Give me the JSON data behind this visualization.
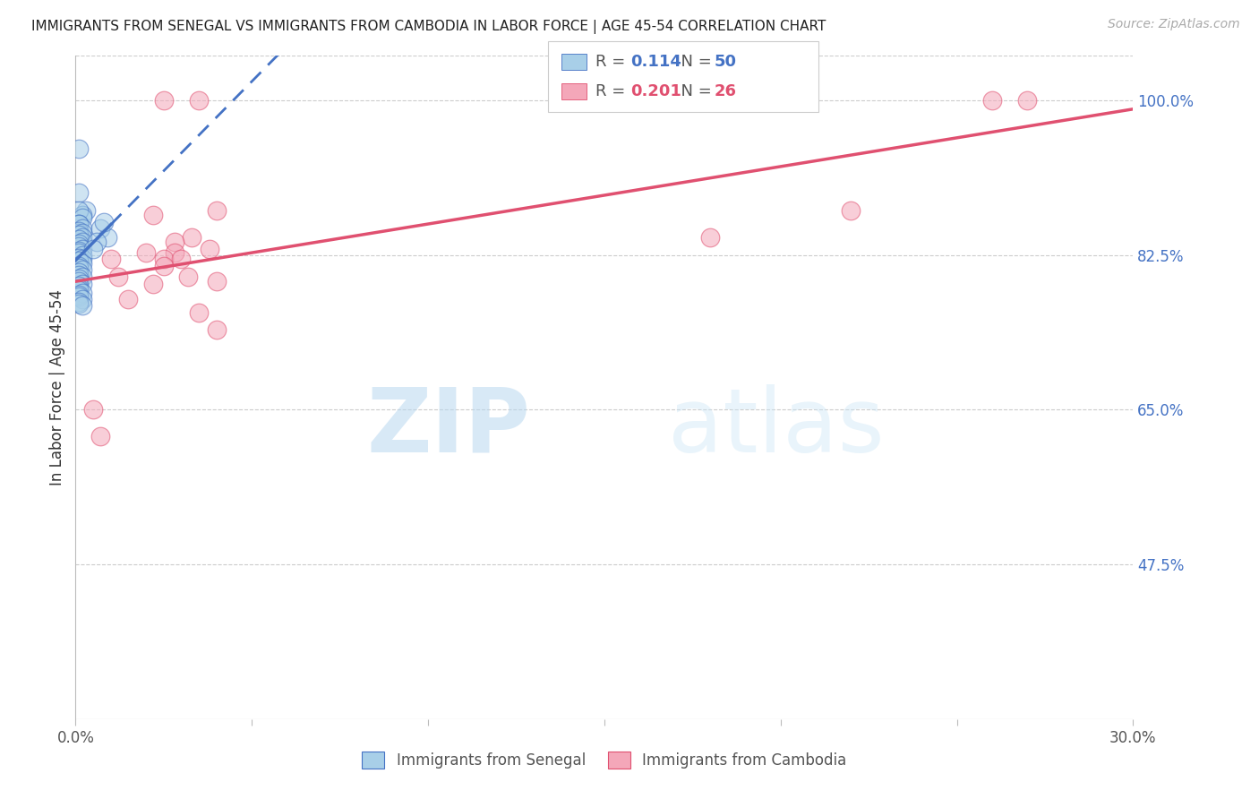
{
  "title": "IMMIGRANTS FROM SENEGAL VS IMMIGRANTS FROM CAMBODIA IN LABOR FORCE | AGE 45-54 CORRELATION CHART",
  "source": "Source: ZipAtlas.com",
  "ylabel": "In Labor Force | Age 45-54",
  "xlim": [
    0.0,
    0.3
  ],
  "ylim": [
    0.3,
    1.05
  ],
  "yticks": [
    0.475,
    0.65,
    0.825,
    1.0
  ],
  "ytick_labels": [
    "47.5%",
    "65.0%",
    "82.5%",
    "100.0%"
  ],
  "xticks": [
    0.0,
    0.05,
    0.1,
    0.15,
    0.2,
    0.25,
    0.3
  ],
  "xtick_labels": [
    "0.0%",
    "",
    "",
    "",
    "",
    "",
    "30.0%"
  ],
  "senegal_R": 0.114,
  "senegal_N": 50,
  "cambodia_R": 0.201,
  "cambodia_N": 26,
  "senegal_color": "#a8cfe8",
  "cambodia_color": "#f4a7b9",
  "trend_senegal_color": "#4472c4",
  "trend_cambodia_color": "#e05070",
  "background_color": "#ffffff",
  "senegal_x": [
    0.001,
    0.001,
    0.003,
    0.002,
    0.001,
    0.002,
    0.001,
    0.001,
    0.002,
    0.001,
    0.001,
    0.002,
    0.001,
    0.002,
    0.001,
    0.002,
    0.001,
    0.001,
    0.002,
    0.001,
    0.001,
    0.002,
    0.001,
    0.002,
    0.001,
    0.002,
    0.001,
    0.001,
    0.002,
    0.001,
    0.001,
    0.002,
    0.001,
    0.001,
    0.002,
    0.001,
    0.001,
    0.001,
    0.002,
    0.001,
    0.001,
    0.002,
    0.001,
    0.001,
    0.002,
    0.007,
    0.009,
    0.008,
    0.006,
    0.005
  ],
  "senegal_y": [
    0.945,
    0.895,
    0.875,
    0.87,
    0.875,
    0.867,
    0.86,
    0.86,
    0.855,
    0.85,
    0.852,
    0.85,
    0.848,
    0.845,
    0.843,
    0.84,
    0.838,
    0.835,
    0.832,
    0.83,
    0.828,
    0.825,
    0.822,
    0.82,
    0.818,
    0.815,
    0.812,
    0.81,
    0.808,
    0.805,
    0.802,
    0.8,
    0.798,
    0.795,
    0.792,
    0.79,
    0.787,
    0.785,
    0.782,
    0.78,
    0.778,
    0.775,
    0.772,
    0.77,
    0.768,
    0.855,
    0.845,
    0.862,
    0.84,
    0.832
  ],
  "cambodia_x": [
    0.022,
    0.025,
    0.035,
    0.04,
    0.033,
    0.028,
    0.028,
    0.025,
    0.025,
    0.032,
    0.022,
    0.038,
    0.04,
    0.01,
    0.012,
    0.015,
    0.02,
    0.03,
    0.18,
    0.22,
    0.035,
    0.04,
    0.005,
    0.007,
    0.26,
    0.27
  ],
  "cambodia_y": [
    0.87,
    1.0,
    1.0,
    0.875,
    0.845,
    0.84,
    0.828,
    0.82,
    0.812,
    0.8,
    0.792,
    0.832,
    0.795,
    0.82,
    0.8,
    0.775,
    0.828,
    0.82,
    0.845,
    0.875,
    0.76,
    0.74,
    0.65,
    0.62,
    1.0,
    1.0
  ]
}
